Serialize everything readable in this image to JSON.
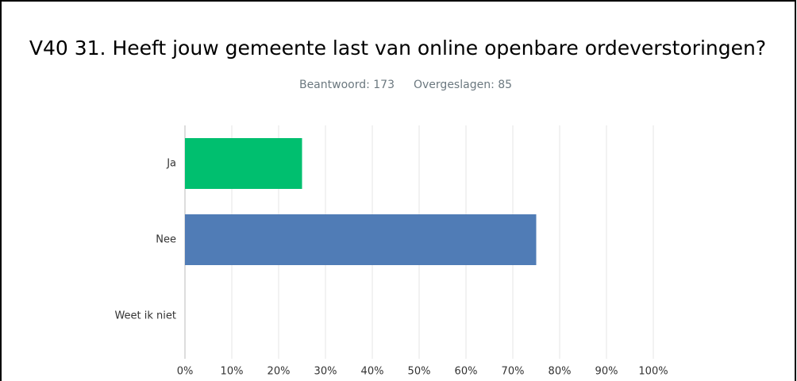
{
  "chart_data": {
    "type": "hbar",
    "title": "V40 31. Heeft jouw gemeente last van online openbare ordeverstoringen?",
    "answered": "Beantwoord: 173",
    "skipped": "Overgeslagen: 85",
    "categories": [
      "Ja",
      "Nee",
      "Weet ik niet"
    ],
    "values": [
      25,
      75,
      0
    ],
    "colors": [
      "#00bf6f",
      "#507cb6",
      "#507cb6"
    ],
    "xlim": [
      0,
      100
    ],
    "xticks": [
      {
        "value": 0,
        "label": "0%"
      },
      {
        "value": 10,
        "label": "10%"
      },
      {
        "value": 20,
        "label": "20%"
      },
      {
        "value": 30,
        "label": "30%"
      },
      {
        "value": 40,
        "label": "40%"
      },
      {
        "value": 50,
        "label": "50%"
      },
      {
        "value": 60,
        "label": "60%"
      },
      {
        "value": 70,
        "label": "70%"
      },
      {
        "value": 80,
        "label": "80%"
      },
      {
        "value": 90,
        "label": "90%"
      },
      {
        "value": 100,
        "label": "100%"
      }
    ],
    "grid": true
  }
}
